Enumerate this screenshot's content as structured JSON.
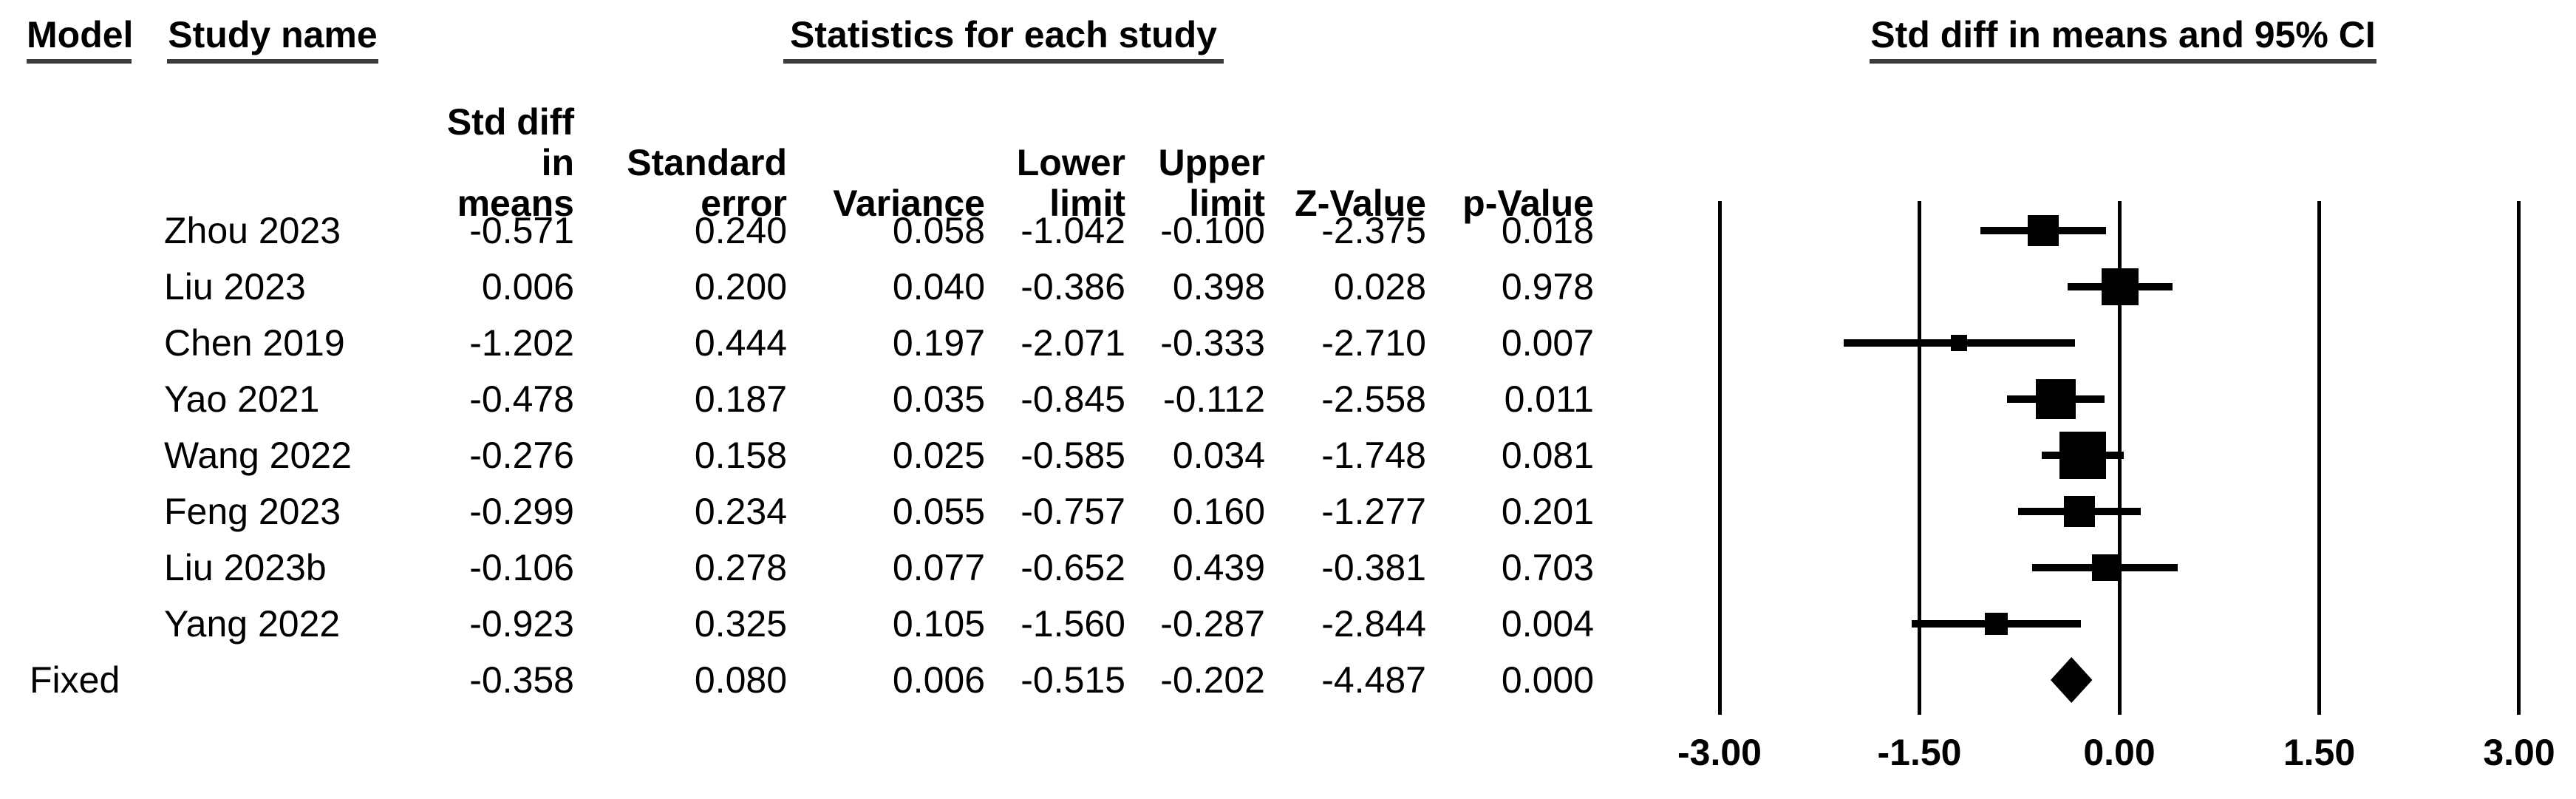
{
  "header": {
    "model": "Model",
    "study_name": "Study name",
    "statistics": "Statistics for each study",
    "ci": "Std diff in means and 95% CI"
  },
  "columns": [
    {
      "line1": "Std diff",
      "line2": "in means"
    },
    {
      "line1": "Standard",
      "line2": "error"
    },
    {
      "line1": "",
      "line2": "Variance"
    },
    {
      "line1": "Lower",
      "line2": "limit"
    },
    {
      "line1": "Upper",
      "line2": "limit"
    },
    {
      "line1": "",
      "line2": "Z-Value"
    },
    {
      "line1": "",
      "line2": "p-Value"
    }
  ],
  "rows": [
    {
      "model": "",
      "study": "Zhou 2023",
      "std_diff": -0.571,
      "std_err": 0.24,
      "variance": 0.058,
      "lower": -1.042,
      "upper": -0.1,
      "z": -2.375,
      "p": 0.018,
      "marker": "square"
    },
    {
      "model": "",
      "study": "Liu 2023",
      "std_diff": 0.006,
      "std_err": 0.2,
      "variance": 0.04,
      "lower": -0.386,
      "upper": 0.398,
      "z": 0.028,
      "p": 0.978,
      "marker": "square"
    },
    {
      "model": "",
      "study": "Chen 2019",
      "std_diff": -1.202,
      "std_err": 0.444,
      "variance": 0.197,
      "lower": -2.071,
      "upper": -0.333,
      "z": -2.71,
      "p": 0.007,
      "marker": "square"
    },
    {
      "model": "",
      "study": "Yao 2021",
      "std_diff": -0.478,
      "std_err": 0.187,
      "variance": 0.035,
      "lower": -0.845,
      "upper": -0.112,
      "z": -2.558,
      "p": 0.011,
      "marker": "square"
    },
    {
      "model": "",
      "study": "Wang 2022",
      "std_diff": -0.276,
      "std_err": 0.158,
      "variance": 0.025,
      "lower": -0.585,
      "upper": 0.034,
      "z": -1.748,
      "p": 0.081,
      "marker": "square"
    },
    {
      "model": "",
      "study": "Feng 2023",
      "std_diff": -0.299,
      "std_err": 0.234,
      "variance": 0.055,
      "lower": -0.757,
      "upper": 0.16,
      "z": -1.277,
      "p": 0.201,
      "marker": "square"
    },
    {
      "model": "",
      "study": "Liu 2023b",
      "std_diff": -0.106,
      "std_err": 0.278,
      "variance": 0.077,
      "lower": -0.652,
      "upper": 0.439,
      "z": -0.381,
      "p": 0.703,
      "marker": "square"
    },
    {
      "model": "",
      "study": "Yang 2022",
      "std_diff": -0.923,
      "std_err": 0.325,
      "variance": 0.105,
      "lower": -1.56,
      "upper": -0.287,
      "z": -2.844,
      "p": 0.004,
      "marker": "square"
    },
    {
      "model": "Fixed",
      "study": "",
      "std_diff": -0.358,
      "std_err": 0.08,
      "variance": 0.006,
      "lower": -0.515,
      "upper": -0.202,
      "z": -4.487,
      "p": 0.0,
      "marker": "diamond"
    }
  ],
  "axis": {
    "tick_labels": [
      "-3.00",
      "-1.50",
      "0.00",
      "1.50",
      "3.00"
    ],
    "tick_values": [
      -3,
      -1.5,
      0,
      1.5,
      3
    ]
  },
  "chart_data": {
    "type": "scatter",
    "variant": "forest-plot",
    "title": "Std diff in means and 95% CI",
    "xlabel": "Std diff in means",
    "xlim": [
      -3,
      3
    ],
    "x_ticks": [
      -3,
      -1.5,
      0,
      1.5,
      3
    ],
    "grid": "vertical-reference-lines",
    "studies": [
      "Zhou 2023",
      "Liu 2023",
      "Chen 2019",
      "Yao 2021",
      "Wang 2022",
      "Feng 2023",
      "Liu 2023b",
      "Yang 2022"
    ],
    "effects": [
      -0.571,
      0.006,
      -1.202,
      -0.478,
      -0.276,
      -0.299,
      -0.106,
      -0.923
    ],
    "ci_lower": [
      -1.042,
      -0.386,
      -2.071,
      -0.845,
      -0.585,
      -0.757,
      -0.652,
      -1.56
    ],
    "ci_upper": [
      -0.1,
      0.398,
      -0.333,
      -0.112,
      0.034,
      0.16,
      0.439,
      -0.287
    ],
    "standard_errors": [
      0.24,
      0.2,
      0.444,
      0.187,
      0.158,
      0.234,
      0.278,
      0.325
    ],
    "summary": {
      "label": "Fixed",
      "effect": -0.358,
      "ci_lower": -0.515,
      "ci_upper": -0.202,
      "z": -4.487,
      "p": 0.0
    }
  }
}
